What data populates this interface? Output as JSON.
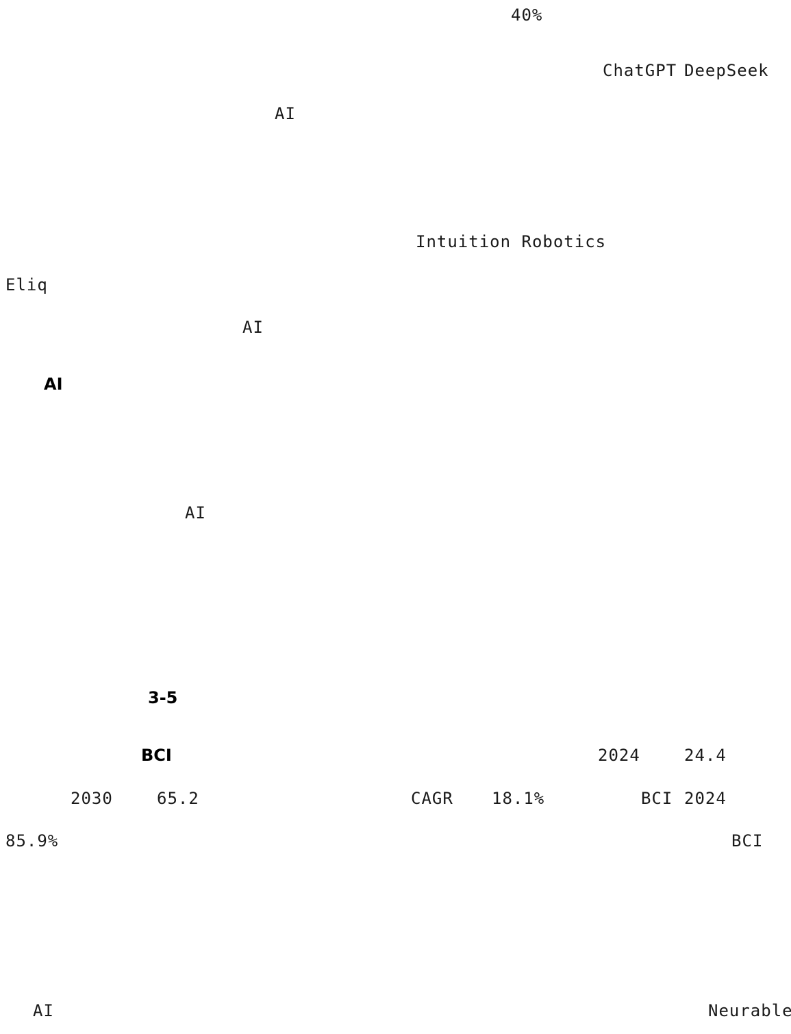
{
  "document": {
    "lines": [
      {
        "id": "pct-40",
        "text": "40%"
      },
      {
        "id": "chatgpt",
        "text": "ChatGPT"
      },
      {
        "id": "deepseek",
        "text": "DeepSeek"
      },
      {
        "id": "ai-1",
        "text": "AI"
      },
      {
        "id": "intuition-robotics",
        "text": "Intuition Robotics"
      },
      {
        "id": "eliq",
        "text": "Eliq"
      },
      {
        "id": "ai-2",
        "text": "AI"
      },
      {
        "id": "ai-heading",
        "text": "AI"
      },
      {
        "id": "ai-3",
        "text": "AI"
      },
      {
        "id": "range-3-5",
        "text": "3-5"
      },
      {
        "id": "bci-heading",
        "text": "BCI"
      },
      {
        "id": "year-2024-a",
        "text": "2024"
      },
      {
        "id": "val-24-4",
        "text": "24.4"
      },
      {
        "id": "year-2030",
        "text": "2030"
      },
      {
        "id": "val-65-2",
        "text": "65.2"
      },
      {
        "id": "cagr",
        "text": "CAGR"
      },
      {
        "id": "pct-18-1",
        "text": "18.1%"
      },
      {
        "id": "bci-2",
        "text": "BCI"
      },
      {
        "id": "year-2024-b",
        "text": "2024"
      },
      {
        "id": "pct-85-9",
        "text": "85.9%"
      },
      {
        "id": "bci-3",
        "text": "BCI"
      },
      {
        "id": "ai-4",
        "text": "AI"
      },
      {
        "id": "neurable",
        "text": "Neurable"
      }
    ]
  }
}
